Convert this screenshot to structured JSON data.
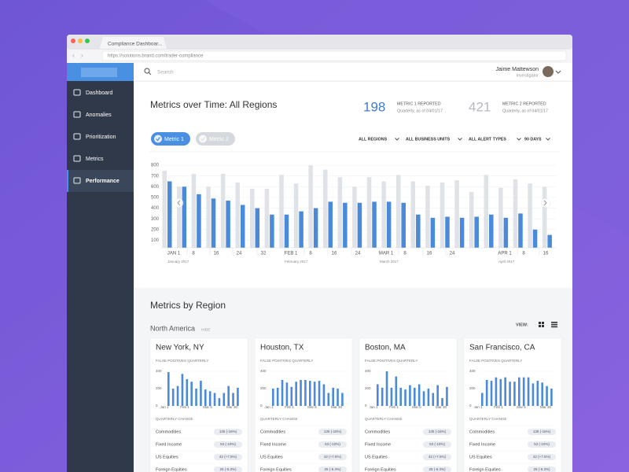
{
  "browser": {
    "tab": "Compliance Dashboar...",
    "url": "https://solutions.brand.com/trader-compliance"
  },
  "sidebar": {
    "items": [
      "Dashboard",
      "Anomalies",
      "Prioritization",
      "Metrics",
      "Performance"
    ],
    "active": 4
  },
  "header": {
    "search": "Search",
    "user_name": "Jaime Mattewson",
    "user_role": "Investigator"
  },
  "overview": {
    "title": "Metrics over Time: All Regions",
    "kpis": [
      {
        "value": 198,
        "label": "METRIC 1 REPORTED",
        "note": "Quarterly, as of 04/01/17",
        "color": "#3d7cc9"
      },
      {
        "value": 421,
        "label": "METRIC 2 REPORTED",
        "note": "Quarterly, as of 04/01/17",
        "color": "#b5b9c0"
      }
    ],
    "filters": [
      "ALL REGIONS",
      "ALL BUSINESS UNITS",
      "ALL ALERT TYPES",
      "90 DAYS"
    ],
    "chart": {
      "type": "bar",
      "series": [
        {
          "name": "Metric 1",
          "color": "#4a8ad8",
          "values": [
            650,
            600,
            530,
            490,
            470,
            430,
            400,
            340,
            340,
            370,
            400,
            460,
            450,
            450,
            460,
            460,
            450,
            340,
            310,
            320,
            310,
            320,
            340,
            310,
            350,
            200,
            150
          ]
        },
        {
          "name": "Metric 2",
          "color": "#dfe2e7",
          "values": [
            750,
            600,
            720,
            600,
            720,
            640,
            580,
            580,
            710,
            630,
            800,
            760,
            690,
            600,
            690,
            650,
            710,
            650,
            610,
            640,
            660,
            550,
            710,
            590,
            670,
            630,
            600
          ]
        }
      ],
      "ylim": [
        30,
        830
      ],
      "yticks": [
        100,
        200,
        300,
        400,
        500,
        600,
        700,
        800
      ],
      "xtick_labels": [
        "JAN 1",
        "8",
        "16",
        "24",
        "32",
        "FEB 1",
        "8",
        "16",
        "24",
        "MAR 1",
        "8",
        "16",
        "24",
        "APR 1",
        "8",
        "16"
      ],
      "month_labels": [
        "January 2017",
        "February 2017",
        "March 2017",
        "April 2017"
      ]
    }
  },
  "regions": {
    "title": "Metrics by Region",
    "region": "North America",
    "hide": "HIDE",
    "view": "VIEW:",
    "cards": [
      {
        "title": "New York, NY",
        "subtitle": "FALSE POSITIVES QUARTERLY",
        "chart": {
          "type": "bar",
          "color": "#4a8ad8",
          "ylim": [
            0,
            420
          ],
          "yticks": [
            0,
            200,
            400
          ],
          "xtick_labels": [
            "Jan 1",
            "Feb 1",
            "Mar 5",
            "Mar 30"
          ],
          "values": [
            390,
            200,
            230,
            370,
            310,
            280,
            200,
            290,
            190,
            170,
            150,
            90,
            150,
            230,
            150,
            210
          ]
        },
        "change_title": "QUARTERLY CHANGE",
        "rows": [
          {
            "label": "Commodities",
            "badge": "135 (-16%)"
          },
          {
            "label": "Fixed Income",
            "badge": "53 (-10%)"
          },
          {
            "label": "US Equities",
            "badge": "42 (+7.5%)"
          },
          {
            "label": "Foreign Equities",
            "badge": "25 (-6.3%)"
          }
        ]
      },
      {
        "title": "Houston, TX",
        "subtitle": "FALSE POSITIVES QUARTERLY",
        "chart": {
          "type": "bar",
          "color": "#4a8ad8",
          "ylim": [
            0,
            420
          ],
          "yticks": [
            0,
            200,
            400
          ],
          "xtick_labels": [
            "Jan 1",
            "Feb 1",
            "Mar 5",
            "Mar 30"
          ],
          "values": [
            200,
            210,
            300,
            270,
            220,
            280,
            300,
            300,
            290,
            280,
            290,
            250,
            150,
            210,
            200,
            150
          ]
        },
        "change_title": "QUARTERLY CHANGE",
        "rows": [
          {
            "label": "Commodities",
            "badge": "135 (-16%)"
          },
          {
            "label": "Fixed Income",
            "badge": "53 (-10%)"
          },
          {
            "label": "US Equities",
            "badge": "42 (+7.5%)"
          },
          {
            "label": "Foreign Equities",
            "badge": "25 (-6.3%)"
          }
        ]
      },
      {
        "title": "Boston, MA",
        "subtitle": "FALSE POSITIVES QUARTERLY",
        "chart": {
          "type": "bar",
          "color": "#4a8ad8",
          "ylim": [
            0,
            420
          ],
          "yticks": [
            0,
            200,
            400
          ],
          "xtick_labels": [
            "Jan 1",
            "Feb 1",
            "Mar 5",
            "Mar 30"
          ],
          "values": [
            250,
            210,
            400,
            210,
            340,
            210,
            190,
            240,
            210,
            250,
            170,
            200,
            150,
            240,
            90,
            220
          ]
        },
        "change_title": "QUARTERLY CHANGE",
        "rows": [
          {
            "label": "Commodities",
            "badge": "135 (-16%)"
          },
          {
            "label": "Fixed Income",
            "badge": "53 (-10%)"
          },
          {
            "label": "US Equities",
            "badge": "42 (+7.5%)"
          },
          {
            "label": "Foreign Equities",
            "badge": "25 (-6.3%)"
          }
        ]
      },
      {
        "title": "San Francisco, CA",
        "subtitle": "FALSE POSITIVES QUARTERLY",
        "chart": {
          "type": "bar",
          "color": "#4a8ad8",
          "ylim": [
            0,
            420
          ],
          "yticks": [
            0,
            200,
            400
          ],
          "xtick_labels": [
            "Jan 1",
            "Feb 1",
            "Mar 5",
            "Mar 30"
          ],
          "values": [
            150,
            300,
            290,
            330,
            310,
            330,
            280,
            280,
            330,
            330,
            330,
            260,
            290,
            270,
            230,
            200
          ]
        },
        "change_title": "QUARTERLY CHANGE",
        "rows": [
          {
            "label": "Commodities",
            "badge": "135 (-16%)"
          },
          {
            "label": "Fixed Income",
            "badge": "53 (-10%)"
          },
          {
            "label": "US Equities",
            "badge": "42 (+7.5%)"
          },
          {
            "label": "Foreign Equities",
            "badge": "25 (-6.3%)"
          }
        ]
      }
    ]
  }
}
